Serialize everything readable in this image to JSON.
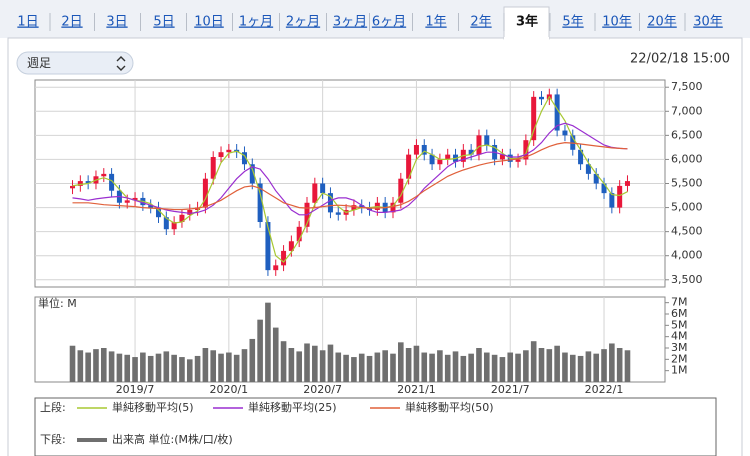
{
  "tabs": [
    "1日",
    "2日",
    "3日",
    "5日",
    "10日",
    "1ヶ月",
    "2ヶ月",
    "3ヶ月",
    "6ヶ月",
    "1年",
    "2年",
    "3年",
    "5年",
    "10年",
    "20年",
    "30年"
  ],
  "selected_tab": 11,
  "period_select": "週足",
  "timestamp": "22/02/18 15:00",
  "chart_data": [
    {
      "type": "candlestick",
      "legend_heading": "上段:",
      "x": [
        2,
        2.5,
        3,
        3.5,
        4,
        4.5,
        5,
        5.5,
        6,
        6.5,
        7,
        7.5,
        8,
        8.5,
        9,
        9.5,
        10,
        10.5,
        11,
        11.5,
        12,
        12.5,
        13,
        13.5,
        14,
        14.5,
        15,
        15.5,
        16,
        16.5,
        17,
        17.5,
        18,
        18.5,
        19,
        19.5,
        20,
        20.5,
        21,
        21.5,
        22,
        22.5,
        23,
        23.5,
        24,
        24.5,
        25,
        25.5,
        26,
        26.5,
        27,
        27.5,
        28,
        28.5,
        29,
        29.5,
        30,
        30.5,
        31,
        31.5,
        32,
        32.5,
        33,
        33.5,
        34,
        34.5,
        35,
        35.5,
        36,
        36.5,
        37,
        37.5
      ],
      "open": [
        5400,
        5450,
        5550,
        5500,
        5650,
        5700,
        5350,
        5100,
        5150,
        5200,
        5050,
        5000,
        4800,
        4550,
        4700,
        4850,
        4950,
        5000,
        5600,
        6050,
        6150,
        6200,
        6150,
        5900,
        5500,
        4700,
        3700,
        3800,
        4100,
        4300,
        4600,
        5100,
        5500,
        5300,
        4900,
        4850,
        4950,
        5050,
        5000,
        4950,
        5100,
        4900,
        5100,
        5600,
        6100,
        6300,
        6100,
        5900,
        6000,
        6100,
        5950,
        6200,
        6100,
        6500,
        6300,
        6000,
        6100,
        5950,
        6000,
        6400,
        7300,
        7250,
        7350,
        6600,
        6500,
        6200,
        5900,
        5700,
        5500,
        5300,
        5000,
        5450
      ],
      "high": [
        5570,
        5670,
        5670,
        5770,
        5820,
        5820,
        5470,
        5270,
        5320,
        5320,
        5170,
        5120,
        4920,
        4820,
        4970,
        5070,
        5120,
        5720,
        6170,
        6270,
        6320,
        6320,
        6270,
        6020,
        5620,
        4820,
        3920,
        4220,
        4420,
        4720,
        5220,
        5620,
        5620,
        5420,
        5020,
        5070,
        5170,
        5170,
        5120,
        5220,
        5220,
        5220,
        5720,
        6220,
        6420,
        6420,
        6220,
        6120,
        6220,
        6220,
        6320,
        6320,
        6620,
        6620,
        6420,
        6220,
        6220,
        6120,
        6520,
        7420,
        7420,
        7470,
        7470,
        6720,
        6620,
        6320,
        6020,
        5820,
        5620,
        5420,
        5570,
        5670
      ],
      "low": [
        5280,
        5330,
        5380,
        5380,
        5530,
        5230,
        4980,
        4980,
        5030,
        4930,
        4880,
        4680,
        4430,
        4430,
        4580,
        4730,
        4830,
        4880,
        5480,
        5930,
        6030,
        6030,
        5780,
        5380,
        4580,
        3580,
        3580,
        3680,
        3980,
        4180,
        4480,
        4980,
        5180,
        4780,
        4730,
        4730,
        4830,
        4880,
        4830,
        4830,
        4780,
        4780,
        4980,
        5480,
        5980,
        5980,
        5780,
        5780,
        5880,
        5830,
        5830,
        5980,
        5980,
        6180,
        5880,
        5880,
        5830,
        5830,
        5880,
        6280,
        7130,
        7130,
        6480,
        6380,
        6080,
        5780,
        5580,
        5380,
        5180,
        4880,
        4880,
        5330
      ],
      "close": [
        5450,
        5550,
        5500,
        5650,
        5700,
        5350,
        5100,
        5150,
        5200,
        5050,
        5000,
        4800,
        4550,
        4700,
        4850,
        4950,
        5000,
        5600,
        6050,
        6150,
        6200,
        6150,
        5900,
        5500,
        4700,
        3700,
        3800,
        4100,
        4300,
        4600,
        5100,
        5500,
        5300,
        4900,
        4850,
        4950,
        5050,
        5000,
        4950,
        5100,
        4900,
        5100,
        5600,
        6100,
        6300,
        6100,
        5900,
        6000,
        6100,
        5950,
        6200,
        6100,
        6500,
        6300,
        6000,
        6100,
        5950,
        6000,
        6400,
        7300,
        7250,
        7350,
        6600,
        6500,
        6200,
        5900,
        5700,
        5500,
        5300,
        5000,
        5450,
        5550
      ],
      "up_color": "#e8173a",
      "down_color": "#1f5fbf",
      "series": [
        {
          "name": "単純移動平均(5)",
          "color": "#a8c832",
          "values": [
            5450,
            5480,
            5500,
            5570,
            5620,
            5560,
            5380,
            5200,
            5150,
            5130,
            5080,
            4950,
            4780,
            4680,
            4700,
            4830,
            4930,
            5180,
            5550,
            5930,
            6130,
            6170,
            6080,
            5800,
            5300,
            4600,
            4000,
            3870,
            4070,
            4330,
            4670,
            5070,
            5300,
            5230,
            5020,
            4900,
            4950,
            5000,
            5000,
            5020,
            5000,
            5030,
            5250,
            5600,
            6000,
            6170,
            6100,
            6000,
            6000,
            6020,
            6080,
            6100,
            6270,
            6300,
            6250,
            6130,
            6020,
            6020,
            6120,
            6600,
            7000,
            7300,
            7050,
            6800,
            6450,
            6200,
            5930,
            5700,
            5500,
            5270,
            5250,
            5330
          ]
        },
        {
          "name": "単純移動平均(25)",
          "color": "#9a2fd0",
          "values": [
            5200,
            5180,
            5150,
            5180,
            5200,
            5220,
            5230,
            5200,
            5150,
            5100,
            5050,
            5000,
            4950,
            4920,
            4900,
            4880,
            4900,
            4950,
            5050,
            5200,
            5400,
            5600,
            5750,
            5850,
            5800,
            5600,
            5350,
            5150,
            4950,
            4850,
            4850,
            4950,
            5050,
            5150,
            5200,
            5200,
            5150,
            5050,
            4950,
            4900,
            4900,
            4920,
            4950,
            5050,
            5200,
            5400,
            5550,
            5700,
            5850,
            5950,
            6000,
            6050,
            6100,
            6150,
            6150,
            6100,
            6050,
            6050,
            6100,
            6200,
            6350,
            6550,
            6700,
            6750,
            6700,
            6600,
            6500,
            6400,
            6300,
            6250,
            6230,
            6220
          ]
        },
        {
          "name": "単純移動平均(50)",
          "color": "#e0603a",
          "values": [
            5100,
            5100,
            5100,
            5080,
            5060,
            5050,
            5040,
            5030,
            5020,
            5000,
            4990,
            4980,
            4970,
            4960,
            4960,
            4970,
            4990,
            5020,
            5080,
            5150,
            5250,
            5350,
            5430,
            5450,
            5400,
            5300,
            5200,
            5100,
            5050,
            5000,
            4990,
            5000,
            5020,
            5040,
            5050,
            5040,
            5020,
            5000,
            4990,
            4990,
            5000,
            5020,
            5060,
            5130,
            5230,
            5350,
            5450,
            5550,
            5650,
            5720,
            5780,
            5830,
            5880,
            5920,
            5950,
            5970,
            5990,
            6010,
            6050,
            6120,
            6200,
            6270,
            6320,
            6350,
            6340,
            6320,
            6300,
            6280,
            6260,
            6240,
            6230,
            6220
          ]
        }
      ],
      "xlim": [
        -0.4,
        39.9
      ],
      "ylim": [
        3350,
        7650
      ],
      "yticks": [
        {
          "value": 3500,
          "label": "3,500"
        },
        {
          "value": 4000,
          "label": "4,000"
        },
        {
          "value": 4500,
          "label": "4,500"
        },
        {
          "value": 5000,
          "label": "5,000"
        },
        {
          "value": 5500,
          "label": "5,500"
        },
        {
          "value": 6000,
          "label": "6,000"
        },
        {
          "value": 6500,
          "label": "6,500"
        },
        {
          "value": 7000,
          "label": "7,000"
        },
        {
          "value": 7500,
          "label": "7,500"
        }
      ],
      "grid": true
    },
    {
      "type": "bar",
      "legend_heading": "下段:",
      "ylabel": "単位: M",
      "series": [
        {
          "name": "出来高 単位:(M株/口/枚)",
          "color": "#6f6f6f",
          "values": [
            3.2,
            2.8,
            2.6,
            2.9,
            3.0,
            2.7,
            2.5,
            2.4,
            2.2,
            2.6,
            2.3,
            2.5,
            2.7,
            2.4,
            2.2,
            2.0,
            2.3,
            3.0,
            2.8,
            2.5,
            2.6,
            2.4,
            2.9,
            3.8,
            5.5,
            7.0,
            4.8,
            3.6,
            3.0,
            2.7,
            3.4,
            3.2,
            2.8,
            3.3,
            2.6,
            2.4,
            2.2,
            2.5,
            2.3,
            2.6,
            2.8,
            2.5,
            3.5,
            3.0,
            3.2,
            2.6,
            2.5,
            2.8,
            2.4,
            2.7,
            2.3,
            2.5,
            3.0,
            2.6,
            2.4,
            2.2,
            2.6,
            2.5,
            2.8,
            3.6,
            3.0,
            2.9,
            3.2,
            2.6,
            2.4,
            2.3,
            2.7,
            2.5,
            2.9,
            3.4,
            3.0,
            2.8
          ]
        }
      ],
      "ylim": [
        0,
        7.5
      ],
      "yticks": [
        {
          "value": 1,
          "label": "1M"
        },
        {
          "value": 2,
          "label": "2M"
        },
        {
          "value": 3,
          "label": "3M"
        },
        {
          "value": 4,
          "label": "4M"
        },
        {
          "value": 5,
          "label": "5M"
        },
        {
          "value": 6,
          "label": "6M"
        },
        {
          "value": 7,
          "label": "7M"
        }
      ],
      "xticks": [
        {
          "value": 6,
          "label": "2019/7"
        },
        {
          "value": 12,
          "label": "2020/1"
        },
        {
          "value": 18,
          "label": "2020/7"
        },
        {
          "value": 24,
          "label": "2021/1"
        },
        {
          "value": 30,
          "label": "2021/7"
        },
        {
          "value": 36,
          "label": "2022/1"
        }
      ]
    }
  ]
}
